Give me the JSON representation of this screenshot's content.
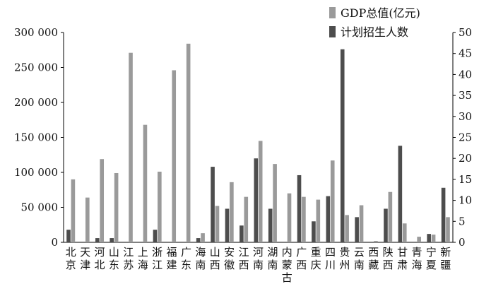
{
  "chart_data": {
    "type": "bar",
    "title": "",
    "xlabel": "",
    "ylabel_left": "",
    "ylabel_right": "",
    "categories": [
      "北京",
      "天津",
      "河北",
      "山东",
      "江苏",
      "上海",
      "浙江",
      "福建",
      "广东",
      "海南",
      "山西",
      "安徽",
      "江西",
      "河南",
      "湖南",
      "内蒙古",
      "广西",
      "重庆",
      "四川",
      "贵州",
      "云南",
      "西藏",
      "陕西",
      "甘肃",
      "青海",
      "宁夏",
      "新疆"
    ],
    "category_labels": [
      [
        "北",
        "京"
      ],
      [
        "天",
        "津"
      ],
      [
        "河",
        "北"
      ],
      [
        "山",
        "东"
      ],
      [
        "江",
        "苏"
      ],
      [
        "上",
        "海"
      ],
      [
        "浙",
        "江"
      ],
      [
        "福",
        "建"
      ],
      [
        "广",
        "东"
      ],
      [
        "海",
        "南"
      ],
      [
        "山",
        "西"
      ],
      [
        "安",
        "徽"
      ],
      [
        "江",
        "西"
      ],
      [
        "河",
        "南"
      ],
      [
        "湖",
        "南"
      ],
      [
        "内",
        "蒙",
        "古"
      ],
      [
        "广",
        "西"
      ],
      [
        "重",
        "庆"
      ],
      [
        "四",
        "川"
      ],
      [
        "贵",
        "州"
      ],
      [
        "云",
        "南"
      ],
      [
        "西",
        "藏"
      ],
      [
        "陕",
        "西"
      ],
      [
        "甘",
        "肃"
      ],
      [
        "青",
        "海"
      ],
      [
        "宁",
        "夏"
      ],
      [
        "新",
        "疆"
      ]
    ],
    "series": [
      {
        "name": "GDP总值(亿元)",
        "axis": "left",
        "color": "#9a9a9a",
        "values": [
          90000,
          64000,
          119000,
          99000,
          271000,
          168000,
          101000,
          246000,
          284000,
          13000,
          52000,
          86000,
          65000,
          145000,
          112000,
          70000,
          65000,
          61000,
          117000,
          39000,
          53000,
          2000,
          72000,
          27000,
          8000,
          11000,
          36000
        ]
      },
      {
        "name": "计划招生人数",
        "axis": "right",
        "color": "#4d4d4d",
        "values": [
          3,
          0,
          1,
          1,
          0,
          0,
          3,
          0,
          0,
          1,
          18,
          8,
          4,
          20,
          8,
          0,
          16,
          5,
          11,
          46,
          6,
          0,
          8,
          23,
          0,
          2,
          13
        ]
      }
    ],
    "yaxis_left": {
      "min": 0,
      "max": 300000,
      "ticks": [
        0,
        50000,
        100000,
        150000,
        200000,
        250000,
        300000
      ],
      "tick_labels": [
        "0",
        "50 000",
        "100 000",
        "150 000",
        "200 000",
        "250 000",
        "300 000"
      ]
    },
    "yaxis_right": {
      "min": 0,
      "max": 50,
      "ticks": [
        0,
        5,
        10,
        15,
        20,
        25,
        30,
        35,
        40,
        45,
        50
      ],
      "tick_labels": [
        "0",
        "5",
        "10",
        "15",
        "20",
        "25",
        "30",
        "35",
        "40",
        "45",
        "50"
      ]
    },
    "grid": false,
    "legend_position": "top-right"
  }
}
